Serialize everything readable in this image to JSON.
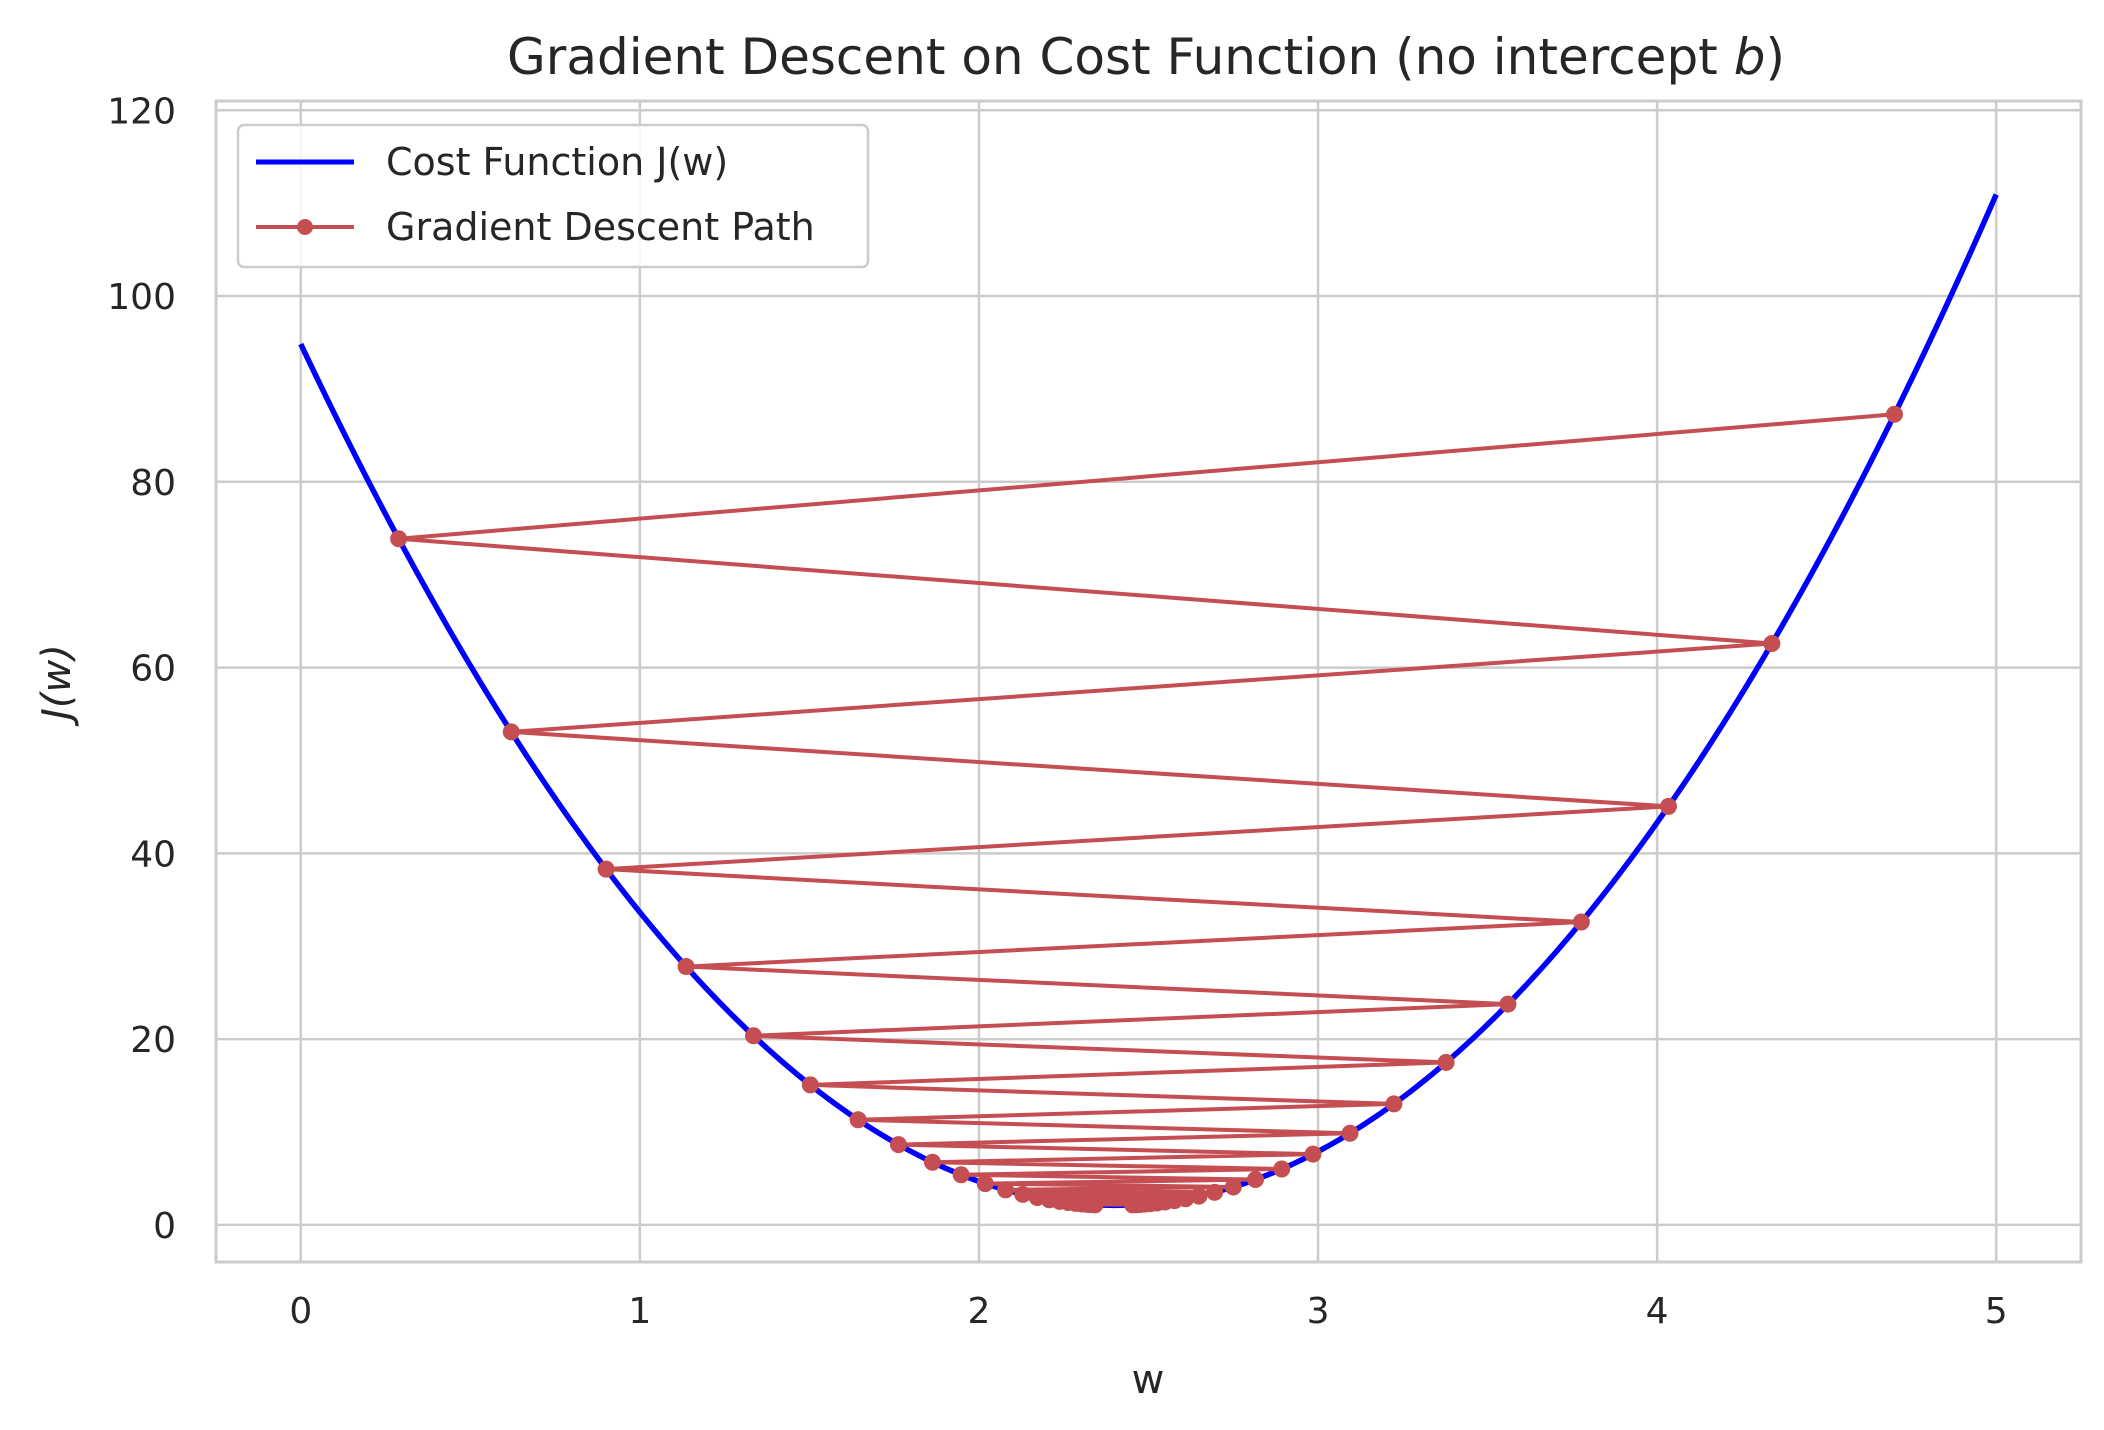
{
  "chart_data": {
    "type": "line",
    "title": "Gradient Descent on Cost Function (no intercept ",
    "title_italic": "b",
    "title_suffix": ")",
    "xlabel": "w",
    "ylabel": "J(w)",
    "xlim": [
      -0.25,
      5.25
    ],
    "ylim": [
      -4,
      121
    ],
    "x_ticks": [
      0,
      1,
      2,
      3,
      4,
      5
    ],
    "y_ticks": [
      0,
      20,
      40,
      60,
      80,
      100,
      120
    ],
    "grid": true,
    "legend_position": "top-left",
    "series": [
      {
        "name": "Cost Function J(w)",
        "color": "#0000ff",
        "style": "line",
        "function": {
          "form": "quadratic",
          "a": 16.1,
          "vertex_w": 2.4,
          "min_j": 2.1,
          "w_range": [
            0,
            5
          ]
        }
      },
      {
        "name": "Gradient Descent Path",
        "color": "#c44e52",
        "style": "line-with-markers",
        "start_w": 4.7,
        "step_ratio": -0.918,
        "steps": 45,
        "points_shown": [
          [
            4.7,
            90.1
          ],
          [
            0.21,
            81.9
          ],
          [
            4.49,
            74.6
          ],
          [
            0.41,
            67.9
          ],
          [
            4.3,
            61.7
          ],
          [
            0.6,
            56.2
          ],
          [
            4.12,
            51.2
          ],
          [
            0.76,
            46.7
          ],
          [
            3.96,
            42.6
          ],
          [
            0.91,
            38.9
          ],
          [
            3.82,
            35.5
          ],
          [
            1.05,
            32.3
          ],
          [
            3.69,
            29.5
          ],
          [
            1.17,
            27.0
          ],
          [
            3.57,
            24.6
          ],
          [
            1.28,
            22.6
          ],
          [
            3.47,
            20.6
          ],
          [
            1.38,
            18.9
          ],
          [
            3.37,
            17.3
          ],
          [
            1.48,
            15.9
          ],
          [
            3.28,
            14.6
          ],
          [
            1.56,
            13.4
          ],
          [
            3.2,
            12.3
          ]
        ]
      }
    ]
  }
}
